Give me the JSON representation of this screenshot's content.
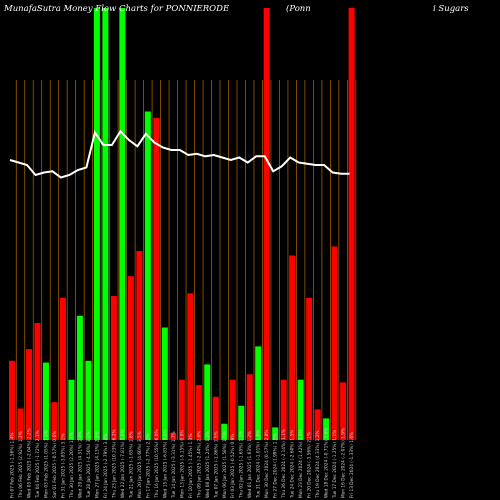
{
  "chart_data": {
    "type": "bar",
    "title_parts": [
      "MunafaSutra  Money Flow  Charts for PONNIERODE",
      "(Ponn",
      "i  Sugars"
    ],
    "xlabel": "",
    "ylabel": "",
    "grid": "vertical",
    "colors": {
      "up": "#00ff00",
      "down": "#ff0000",
      "line": "#ffffff",
      "grid": "#b86a00",
      "background": "#000000"
    },
    "categories": [
      "Fri 07 Feb 2025 (-1.56%) 1.4%",
      "Thu 06 Feb 2025 (2.92%) 1.2%",
      "Wed 05 Feb 2025 (-2.04%) 2.2%",
      "Tue 04 Feb 2025 (-1.72%) 2.1%",
      "Mon 03 Feb 2025 (1.05%) 1.5%",
      "Sat 01 Feb 2025 (-0.57%) 0.6%",
      "Fri 31 Jan 2025 (-3.85%) 3.1%",
      "Thu 30 Jan 2025 (2.20%) 1.7%",
      "Wed 29 Jan 2025 (4.51%) 2.4%",
      "Tue 28 Jan 2025 (-4.50%) 3.1%",
      "Mon 27 Jan 2025 (4.13%) 2.8%",
      "Fri 24 Jan 2025 (-2.79%) 3.4%",
      "Thu 23 Jan 2025 (10.23%) 6.2%",
      "Wed 22 Jan 2025 (-7.81%) 5.0%",
      "Tue 21 Jan 2025 (-1.65%) 1.8%",
      "Mon 20 Jan 2025 (4.60%) 3.5%",
      "Fri 17 Jan 2025 (-2.77%) 2.2%",
      "Thu 16 Jan 2025 (10.55%) 6.0%",
      "Wed 15 Jan 2025 (-6.83%) 5.0%",
      "Tue 14 Jan 2025 (-3.31%) 1.7%",
      "Mon 13 Jan 2025 (-5.15%) 0.9%",
      "Fri 10 Jan 2025 (-1.45%) 1.3%",
      "Thu 09 Jan 2025 (-2.44%) 2.0%",
      "Wed 08 Jan 2025 (1.24%) 1.2%",
      "Tue 07 Jan 2025 (-1.86%) 1.5%",
      "Mon 06 Jan 2025 (1.58%) 1.0%",
      "Fri 03 Jan 2025 (-0.52%) 0.9%",
      "Thu 02 Jan 2025 (-1.65%) 1.1%",
      "Wed 01 Jan 2025 (1.63%) 1.2%",
      "Tue 31 Dec 2024 (-1.01%) 1.6%",
      "Mon 30 Dec 2024 (0.57%) 2.8%",
      "Fri 27 Dec 2024 (1.99%) 1.5%",
      "Thu 26 Dec 2024 (-2.14%) 1.1%",
      "Tue 24 Dec 2024 (-2.60%) 1.5%",
      "Mon 23 Dec 2024 (1.42%) 2.5%",
      "Fri 20 Dec 2024 (-3.56%) 2.1%",
      "Thu 19 Dec 2024 (4.33%) 1.2%",
      "Wed 18 Dec 2024 (-0.71%) 2.0%",
      "Tue 17 Dec 2024 (-1.25%) 1.1%",
      "Mon 16 Dec 2024 (-2.07%) 1.9%",
      "Fri 13 Dec 2024 (-1.33%) 1.6%"
    ],
    "bar_colors": [
      "down",
      "down",
      "down",
      "down",
      "up",
      "down",
      "down",
      "up",
      "up",
      "up",
      "up",
      "up",
      "down",
      "up",
      "down",
      "down",
      "up",
      "down",
      "up",
      "down",
      "down",
      "down",
      "down",
      "up",
      "down",
      "up",
      "down",
      "up",
      "down",
      "up",
      "down",
      "up",
      "down",
      "down",
      "up",
      "down",
      "down",
      "up",
      "down",
      "down",
      "down"
    ],
    "volume": [
      88,
      35,
      101,
      130,
      86,
      42,
      158,
      67,
      138,
      88,
      480,
      480,
      160,
      480,
      182,
      210,
      365,
      358,
      125,
      8,
      67,
      163,
      61,
      84,
      48,
      18,
      67,
      38,
      73,
      104,
      480,
      14,
      67,
      205,
      67,
      158,
      34,
      24,
      215,
      64,
      480
    ],
    "price": [
      268,
      266,
      264,
      256,
      258,
      259,
      254,
      256,
      260,
      262,
      290,
      280,
      280,
      291,
      284,
      279,
      289,
      282,
      278,
      276,
      276,
      272,
      273,
      271,
      272,
      270,
      268,
      270,
      266,
      271,
      271,
      259,
      263,
      270,
      266,
      265,
      264,
      264,
      258,
      257,
      257
    ],
    "ylim_volume": [
      0,
      400
    ],
    "ylim_price": [
      200,
      300
    ]
  }
}
